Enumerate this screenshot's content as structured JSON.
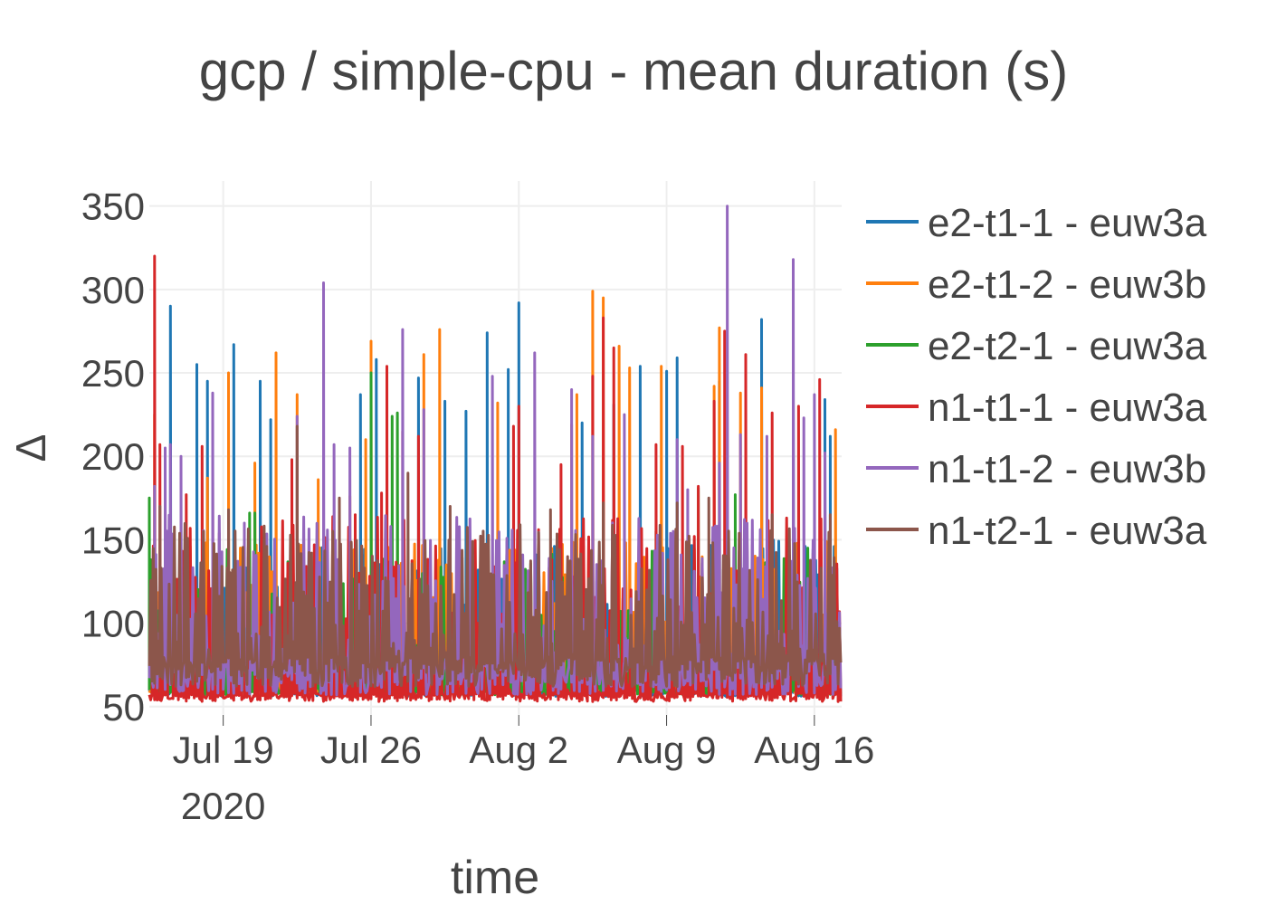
{
  "chart_data": {
    "type": "line",
    "title": "gcp / simple-cpu - mean duration (s)",
    "xlabel": "time",
    "ylabel": "Δ",
    "x_start": "2020-07-15T12:00",
    "x_end": "2020-08-17T07:00",
    "xlim": [
      "2020-07-15T12:00",
      "2020-08-17T07:00"
    ],
    "ylim": [
      45,
      365
    ],
    "x_ticks": [
      {
        "date": "2020-07-19",
        "label": "Jul 19",
        "sublabel": "2020"
      },
      {
        "date": "2020-07-26",
        "label": "Jul 26",
        "sublabel": ""
      },
      {
        "date": "2020-08-02",
        "label": "Aug 2",
        "sublabel": ""
      },
      {
        "date": "2020-08-09",
        "label": "Aug 9",
        "sublabel": ""
      },
      {
        "date": "2020-08-16",
        "label": "Aug 16",
        "sublabel": ""
      }
    ],
    "y_ticks": [
      50,
      100,
      150,
      200,
      250,
      300,
      350
    ],
    "grid": true,
    "legend_position": "right",
    "sampling": "about every 3 hours, values approximate",
    "series": [
      {
        "name": "e2-t1-1 - euw3a",
        "color": "#1f77b4",
        "baseline": [
          56,
          60
        ],
        "band": [
          58,
          150
        ],
        "peaks": [
          {
            "x": "2020-07-16T12:00",
            "y": 290
          },
          {
            "x": "2020-07-17T18:00",
            "y": 255
          },
          {
            "x": "2020-07-18T06:00",
            "y": 245
          },
          {
            "x": "2020-07-19T12:00",
            "y": 267
          },
          {
            "x": "2020-07-20T18:00",
            "y": 245
          },
          {
            "x": "2020-07-21T06:00",
            "y": 222
          },
          {
            "x": "2020-07-25T12:00",
            "y": 237
          },
          {
            "x": "2020-07-26T06:00",
            "y": 258
          },
          {
            "x": "2020-07-28T06:00",
            "y": 247
          },
          {
            "x": "2020-07-29T12:00",
            "y": 233
          },
          {
            "x": "2020-07-30T12:00",
            "y": 227
          },
          {
            "x": "2020-07-31T12:00",
            "y": 274
          },
          {
            "x": "2020-08-01T12:00",
            "y": 252
          },
          {
            "x": "2020-08-02T00:00",
            "y": 292
          },
          {
            "x": "2020-08-05T00:00",
            "y": 220
          },
          {
            "x": "2020-08-06T12:00",
            "y": 231
          },
          {
            "x": "2020-08-07T18:00",
            "y": 254
          },
          {
            "x": "2020-08-09T00:00",
            "y": 251
          },
          {
            "x": "2020-08-09T12:00",
            "y": 259
          },
          {
            "x": "2020-08-11T12:00",
            "y": 245
          },
          {
            "x": "2020-08-13T12:00",
            "y": 282
          },
          {
            "x": "2020-08-15T00:00",
            "y": 244
          },
          {
            "x": "2020-08-16T12:00",
            "y": 234
          },
          {
            "x": "2020-08-16T18:00",
            "y": 212
          }
        ]
      },
      {
        "name": "e2-t1-2 - euw3b",
        "color": "#ff7f0e",
        "baseline": [
          58,
          62
        ],
        "band": [
          60,
          150
        ],
        "peaks": [
          {
            "x": "2020-07-15T18:00",
            "y": 225
          },
          {
            "x": "2020-07-18T06:00",
            "y": 187
          },
          {
            "x": "2020-07-19T06:00",
            "y": 250
          },
          {
            "x": "2020-07-20T12:00",
            "y": 196
          },
          {
            "x": "2020-07-21T12:00",
            "y": 262
          },
          {
            "x": "2020-07-22T12:00",
            "y": 237
          },
          {
            "x": "2020-07-23T12:00",
            "y": 186
          },
          {
            "x": "2020-07-25T00:00",
            "y": 176
          },
          {
            "x": "2020-07-25T18:00",
            "y": 210
          },
          {
            "x": "2020-07-26T00:00",
            "y": 269
          },
          {
            "x": "2020-07-28T12:00",
            "y": 261
          },
          {
            "x": "2020-07-29T06:00",
            "y": 276
          },
          {
            "x": "2020-08-01T00:00",
            "y": 232
          },
          {
            "x": "2020-08-04T12:00",
            "y": 219
          },
          {
            "x": "2020-08-04T18:00",
            "y": 237
          },
          {
            "x": "2020-08-05T12:00",
            "y": 299
          },
          {
            "x": "2020-08-06T00:00",
            "y": 295
          },
          {
            "x": "2020-08-06T18:00",
            "y": 266
          },
          {
            "x": "2020-08-07T06:00",
            "y": 253
          },
          {
            "x": "2020-08-08T18:00",
            "y": 254
          },
          {
            "x": "2020-08-11T06:00",
            "y": 242
          },
          {
            "x": "2020-08-11T12:00",
            "y": 277
          },
          {
            "x": "2020-08-12T12:00",
            "y": 238
          },
          {
            "x": "2020-08-13T12:00",
            "y": 241
          },
          {
            "x": "2020-08-17T00:00",
            "y": 216
          }
        ]
      },
      {
        "name": "e2-t2-1 - euw3a",
        "color": "#2ca02c",
        "baseline": [
          57,
          61
        ],
        "band": [
          60,
          145
        ],
        "peaks": [
          {
            "x": "2020-07-15T12:00",
            "y": 175
          },
          {
            "x": "2020-07-20T06:00",
            "y": 166
          },
          {
            "x": "2020-07-20T12:00",
            "y": 166
          },
          {
            "x": "2020-07-26T00:00",
            "y": 250
          },
          {
            "x": "2020-07-27T00:00",
            "y": 224
          },
          {
            "x": "2020-07-27T06:00",
            "y": 226
          },
          {
            "x": "2020-08-08T12:00",
            "y": 155
          },
          {
            "x": "2020-08-10T12:00",
            "y": 181
          },
          {
            "x": "2020-08-12T06:00",
            "y": 177
          }
        ]
      },
      {
        "name": "n1-t1-1 - euw3a",
        "color": "#d62728",
        "baseline": [
          53,
          58
        ],
        "band": [
          55,
          165
        ],
        "peaks": [
          {
            "x": "2020-07-15T18:00",
            "y": 320
          },
          {
            "x": "2020-07-16T00:00",
            "y": 207
          },
          {
            "x": "2020-07-17T06:00",
            "y": 177
          },
          {
            "x": "2020-07-18T00:00",
            "y": 206
          },
          {
            "x": "2020-07-18T12:00",
            "y": 191
          },
          {
            "x": "2020-07-22T06:00",
            "y": 198
          },
          {
            "x": "2020-07-25T06:00",
            "y": 165
          },
          {
            "x": "2020-07-26T12:00",
            "y": 178
          },
          {
            "x": "2020-07-26T18:00",
            "y": 254
          },
          {
            "x": "2020-07-27T12:00",
            "y": 215
          },
          {
            "x": "2020-07-28T06:00",
            "y": 212
          },
          {
            "x": "2020-08-01T18:00",
            "y": 218
          },
          {
            "x": "2020-08-02T00:00",
            "y": 230
          },
          {
            "x": "2020-08-04T00:00",
            "y": 195
          },
          {
            "x": "2020-08-05T12:00",
            "y": 248
          },
          {
            "x": "2020-08-06T00:00",
            "y": 283
          },
          {
            "x": "2020-08-06T12:00",
            "y": 265
          },
          {
            "x": "2020-08-08T12:00",
            "y": 207
          },
          {
            "x": "2020-08-09T18:00",
            "y": 206
          },
          {
            "x": "2020-08-10T12:00",
            "y": 182
          },
          {
            "x": "2020-08-11T06:00",
            "y": 233
          },
          {
            "x": "2020-08-11T18:00",
            "y": 275
          },
          {
            "x": "2020-08-12T18:00",
            "y": 261
          },
          {
            "x": "2020-08-14T00:00",
            "y": 226
          },
          {
            "x": "2020-08-15T06:00",
            "y": 230
          },
          {
            "x": "2020-08-16T06:00",
            "y": 246
          }
        ]
      },
      {
        "name": "n1-t1-2 - euw3b",
        "color": "#9467bd",
        "baseline": [
          57,
          76
        ],
        "band": [
          70,
          165
        ],
        "peaks": [
          {
            "x": "2020-07-15T18:00",
            "y": 182
          },
          {
            "x": "2020-07-16T06:00",
            "y": 205
          },
          {
            "x": "2020-07-16T12:00",
            "y": 207
          },
          {
            "x": "2020-07-17T00:00",
            "y": 200
          },
          {
            "x": "2020-07-18T12:00",
            "y": 238
          },
          {
            "x": "2020-07-20T00:00",
            "y": 160
          },
          {
            "x": "2020-07-22T12:00",
            "y": 224
          },
          {
            "x": "2020-07-23T18:00",
            "y": 304
          },
          {
            "x": "2020-07-24T06:00",
            "y": 207
          },
          {
            "x": "2020-07-25T00:00",
            "y": 205
          },
          {
            "x": "2020-07-27T12:00",
            "y": 276
          },
          {
            "x": "2020-07-28T12:00",
            "y": 228
          },
          {
            "x": "2020-07-31T18:00",
            "y": 248
          },
          {
            "x": "2020-08-02T18:00",
            "y": 262
          },
          {
            "x": "2020-08-04T12:00",
            "y": 240
          },
          {
            "x": "2020-08-05T12:00",
            "y": 212
          },
          {
            "x": "2020-08-07T00:00",
            "y": 225
          },
          {
            "x": "2020-08-09T12:00",
            "y": 210
          },
          {
            "x": "2020-08-10T00:00",
            "y": 180
          },
          {
            "x": "2020-08-11T12:00",
            "y": 196
          },
          {
            "x": "2020-08-11T21:00",
            "y": 350
          },
          {
            "x": "2020-08-12T12:00",
            "y": 213
          },
          {
            "x": "2020-08-13T18:00",
            "y": 212
          },
          {
            "x": "2020-08-15T00:00",
            "y": 318
          },
          {
            "x": "2020-08-15T12:00",
            "y": 223
          },
          {
            "x": "2020-08-16T00:00",
            "y": 237
          },
          {
            "x": "2020-08-16T12:00",
            "y": 202
          }
        ]
      },
      {
        "name": "n1-t2-1 - euw3a",
        "color": "#8c564b",
        "baseline": [
          62,
          80
        ],
        "band": [
          75,
          160
        ],
        "peaks": [
          {
            "x": "2020-07-16T00:00",
            "y": 170
          },
          {
            "x": "2020-07-19T06:00",
            "y": 168
          },
          {
            "x": "2020-07-22T12:00",
            "y": 218
          },
          {
            "x": "2020-07-24T12:00",
            "y": 175
          },
          {
            "x": "2020-07-27T18:00",
            "y": 190
          },
          {
            "x": "2020-07-29T18:00",
            "y": 170
          },
          {
            "x": "2020-08-03T12:00",
            "y": 168
          },
          {
            "x": "2020-08-06T00:00",
            "y": 172
          },
          {
            "x": "2020-08-09T12:00",
            "y": 172
          },
          {
            "x": "2020-08-11T00:00",
            "y": 175
          },
          {
            "x": "2020-08-14T00:00",
            "y": 165
          },
          {
            "x": "2020-08-16T18:00",
            "y": 165
          }
        ]
      }
    ]
  }
}
